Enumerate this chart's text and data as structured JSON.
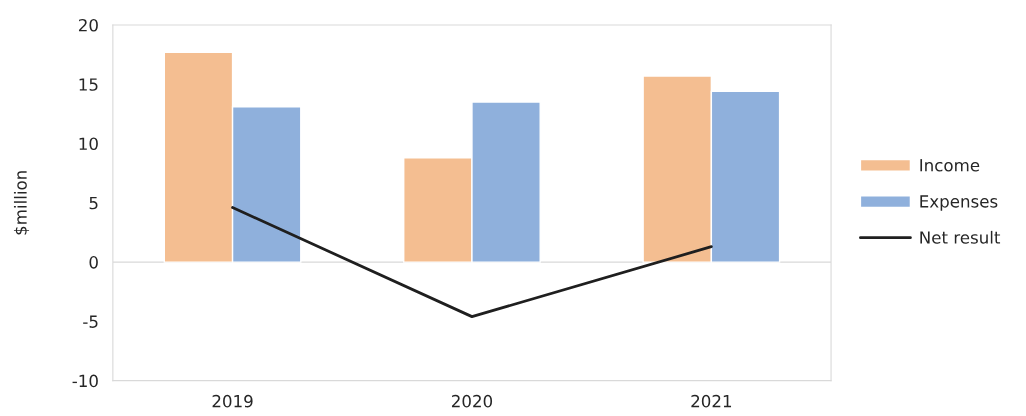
{
  "chart_data": {
    "type": "bar",
    "ylabel": "$million",
    "categories": [
      "2019",
      "2020",
      "2021"
    ],
    "series": [
      {
        "name": "Income",
        "color": "#f4be91",
        "values": [
          17.7,
          8.8,
          15.7
        ]
      },
      {
        "name": "Expenses",
        "color": "#8fb0dc",
        "values": [
          13.1,
          13.5,
          14.4
        ]
      },
      {
        "name": "Net result",
        "type": "line",
        "color": "#1f1f1f",
        "values": [
          4.6,
          -4.6,
          1.3
        ]
      }
    ],
    "ylim": [
      -10,
      20
    ],
    "yticks": [
      -10,
      -5,
      0,
      5,
      10,
      15,
      20
    ],
    "grid": false,
    "ref_lines": [
      {
        "axis": "y",
        "value": 0,
        "color": "#d9d9d9"
      }
    ],
    "legend": "right"
  }
}
